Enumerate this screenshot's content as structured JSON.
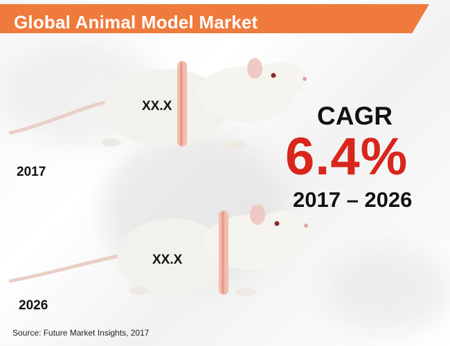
{
  "title": "Global Animal Model Market",
  "rat_top": {
    "value": "XX.X",
    "year": "2017"
  },
  "rat_bottom": {
    "value": "XX.X",
    "year": "2026"
  },
  "cagr": {
    "label": "CAGR",
    "value": "6.4%",
    "period": "2017 – 2026"
  },
  "source": "Source: Future Market Insights, 2017",
  "colors": {
    "accent": "#f07a3b",
    "highlight": "#d9261c",
    "text": "#111111"
  }
}
